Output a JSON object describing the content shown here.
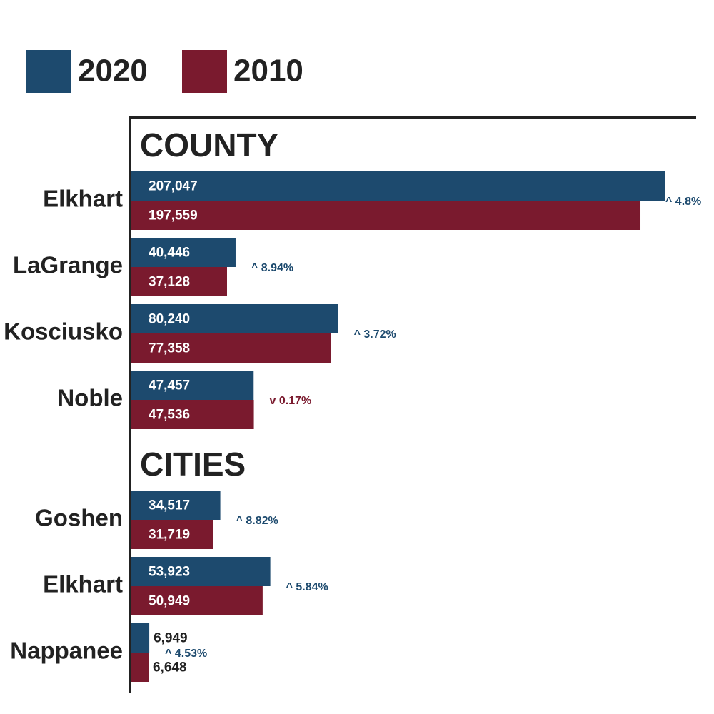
{
  "chart_data": {
    "type": "bar",
    "orientation": "horizontal",
    "groups": [
      {
        "name": "COUNTY",
        "categories": [
          "Elkhart",
          "LaGrange",
          "Kosciusko",
          "Noble"
        ]
      },
      {
        "name": "CITIES",
        "categories": [
          "Goshen",
          "Elkhart",
          "Nappanee"
        ]
      }
    ],
    "series": [
      {
        "name": "2020",
        "color": "#1d4a6e",
        "values": [
          207047,
          40446,
          80240,
          47457,
          34517,
          53923,
          6949
        ],
        "value_labels": [
          "207,047",
          "40,446",
          "80,240",
          "47,457",
          "34,517",
          "53,923",
          "6,949"
        ]
      },
      {
        "name": "2010",
        "color": "#7a1a2e",
        "values": [
          197559,
          37128,
          77358,
          47536,
          31719,
          50949,
          6648
        ],
        "value_labels": [
          "197,559",
          "37,128",
          "77,358",
          "47,536",
          "31,719",
          "50,949",
          "6,648"
        ]
      }
    ],
    "annotations": [
      {
        "text": "^ 4.8%",
        "color": "#1d4a6e"
      },
      {
        "text": "^ 8.94%",
        "color": "#1d4a6e"
      },
      {
        "text": "^ 3.72%",
        "color": "#1d4a6e"
      },
      {
        "text": "v 0.17%",
        "color": "#7a1a2e"
      },
      {
        "text": "^ 8.82%",
        "color": "#1d4a6e"
      },
      {
        "text": "^ 5.84%",
        "color": "#1d4a6e"
      },
      {
        "text": "^ 4.53%",
        "color": "#1d4a6e"
      }
    ],
    "xlim": [
      0,
      220000
    ]
  }
}
